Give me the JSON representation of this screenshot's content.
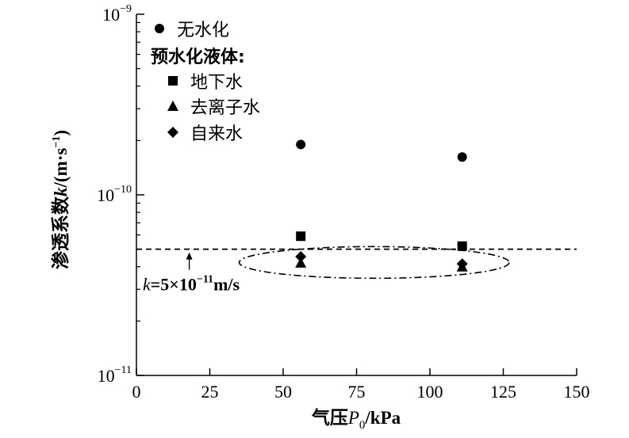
{
  "chart_data": {
    "type": "scatter",
    "x_axis": {
      "label_prefix": "气压",
      "label_var": "P",
      "label_sub": "0",
      "label_unit": "/kPa",
      "range": [
        0,
        150
      ],
      "ticks": [
        "0",
        "25",
        "50",
        "75",
        "100",
        "125",
        "150"
      ]
    },
    "y_axis": {
      "label_prefix": "渗透系数",
      "label_var": "k",
      "label_unit": "/(m·s",
      "label_unit_sup": "−1",
      "label_close": ")",
      "scale": "log",
      "range": [
        1e-11,
        1e-09
      ],
      "ticks": [
        {
          "base": "10",
          "exp": "−9"
        },
        {
          "base": "10",
          "exp": "−10"
        },
        {
          "base": "10",
          "exp": "−11"
        }
      ]
    },
    "series": [
      {
        "name": "无水化",
        "marker": "circle",
        "x": [
          56,
          111
        ],
        "y": [
          1.9e-10,
          1.62e-10
        ]
      },
      {
        "name": "地下水",
        "marker": "square",
        "x": [
          56,
          111
        ],
        "y": [
          5.9e-11,
          5.2e-11
        ]
      },
      {
        "name": "去离子水",
        "marker": "triangle",
        "x": [
          56,
          111
        ],
        "y": [
          4.2e-11,
          4e-11
        ]
      },
      {
        "name": "自来水",
        "marker": "diamond",
        "x": [
          56,
          111
        ],
        "y": [
          4.55e-11,
          4.15e-11
        ]
      }
    ],
    "legend": {
      "position": "top-left",
      "group_title": "预水化液体:"
    },
    "reference_line": {
      "y": 5e-11,
      "style": "dashed",
      "label_var": "k",
      "label_eq": "=5×10",
      "label_exp": "−11",
      "label_unit": "m/s"
    },
    "grid": false,
    "colors": {
      "marks": "#000000",
      "background": "#ffffff"
    }
  }
}
